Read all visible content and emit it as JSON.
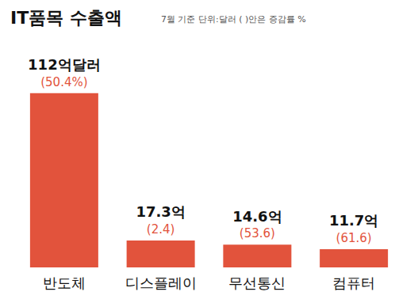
{
  "chart_data": {
    "type": "bar",
    "title": "IT품목 수출액",
    "subtitle": "7월 기준 단위:달러 ( )안은 증감률 %",
    "categories": [
      "반도체",
      "디스플레이",
      "무선통신",
      "컴퓨터"
    ],
    "values": [
      112,
      17.3,
      14.6,
      11.7
    ],
    "value_labels": [
      "112억달러",
      "17.3억",
      "14.6억",
      "11.7억"
    ],
    "growth_labels": [
      "(50.4%)",
      "(2.4)",
      "(53.6)",
      "(61.6)"
    ],
    "color": "#e2533c",
    "data_labels": true,
    "tick_labels": "x",
    "grid": false
  }
}
